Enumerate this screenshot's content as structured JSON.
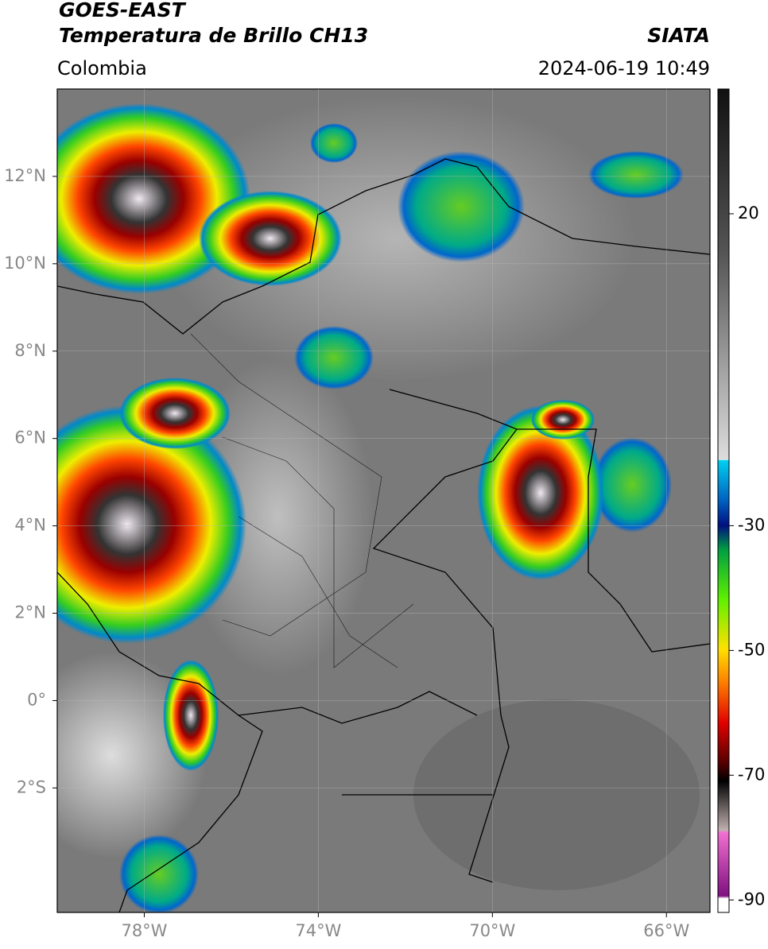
{
  "header": {
    "title": "GOES-EAST",
    "subtitle": "Temperatura de Brillo CH13",
    "source": "SIATA",
    "region": "Colombia",
    "datetime": "2024-06-19 10:49"
  },
  "chart_data": {
    "type": "map",
    "grid": true,
    "xlim": [
      -80,
      -65
    ],
    "xticks": [
      {
        "value": -78,
        "label": "78°W"
      },
      {
        "value": -74,
        "label": "74°W"
      },
      {
        "value": -70,
        "label": "70°W"
      },
      {
        "value": -66,
        "label": "66°W"
      }
    ],
    "ylim": [
      -4.85,
      14
    ],
    "yticks": [
      {
        "value": 12,
        "label": "12°N"
      },
      {
        "value": 10,
        "label": "10°N"
      },
      {
        "value": 8,
        "label": "8°N"
      },
      {
        "value": 6,
        "label": "6°N"
      },
      {
        "value": 4,
        "label": "4°N"
      },
      {
        "value": 2,
        "label": "2°N"
      },
      {
        "value": 0,
        "label": "0°"
      },
      {
        "value": -2,
        "label": "2°S"
      }
    ],
    "colorbar": {
      "lim": [
        -92,
        40
      ],
      "ticks": [
        20,
        -30,
        -50,
        -70,
        -90
      ]
    }
  }
}
